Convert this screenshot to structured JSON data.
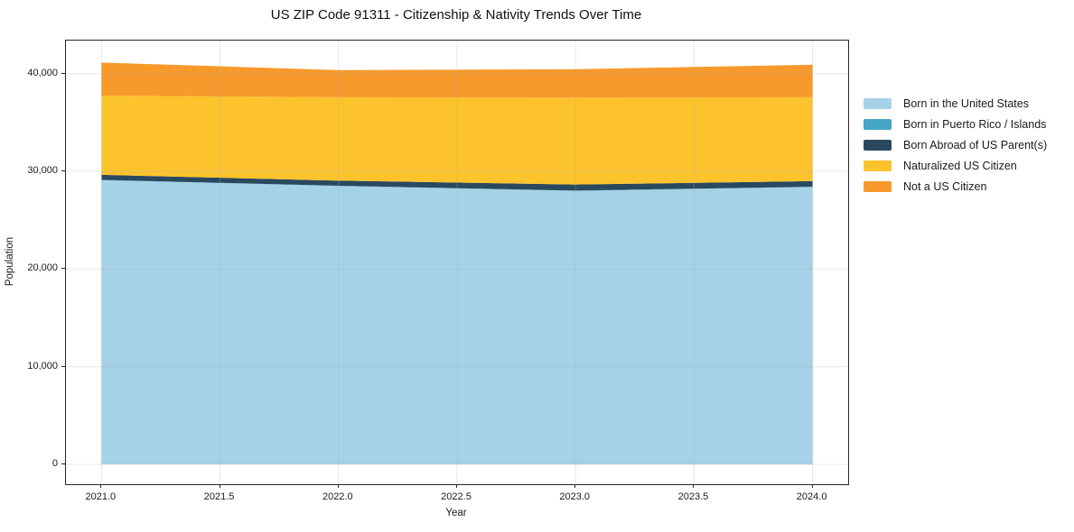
{
  "chart_data": {
    "type": "area",
    "stacked": true,
    "title": "US ZIP Code 91311 - Citizenship & Nativity Trends Over Time",
    "xlabel": "Year",
    "ylabel": "Population",
    "x": [
      2021,
      2022,
      2023,
      2024
    ],
    "series": [
      {
        "name": "Born in the United States",
        "color": "#a6d2e7",
        "values": [
          29100,
          28500,
          28000,
          28400
        ]
      },
      {
        "name": "Born in Puerto Rico / Islands",
        "color": "#45a6c3",
        "values": [
          30,
          30,
          30,
          30
        ]
      },
      {
        "name": "Born Abroad of US Parent(s)",
        "color": "#2a495e",
        "values": [
          520,
          520,
          620,
          570
        ]
      },
      {
        "name": "Naturalized US Citizen",
        "color": "#fcc32d",
        "values": [
          8100,
          8540,
          8890,
          8590
        ]
      },
      {
        "name": "Not a US Citizen",
        "color": "#f8992b",
        "values": [
          3390,
          2775,
          2915,
          3330
        ]
      }
    ],
    "totals": [
      41140,
      40365,
      40455,
      40920
    ],
    "xlim": [
      2020.85,
      2024.15
    ],
    "ylim": [
      -2030,
      43390
    ],
    "xticks": [
      {
        "value": 2021.0,
        "label": "2021.0"
      },
      {
        "value": 2021.5,
        "label": "2021.5"
      },
      {
        "value": 2022.0,
        "label": "2022.0"
      },
      {
        "value": 2022.5,
        "label": "2022.5"
      },
      {
        "value": 2023.0,
        "label": "2023.0"
      },
      {
        "value": 2023.5,
        "label": "2023.5"
      },
      {
        "value": 2024.0,
        "label": "2024.0"
      }
    ],
    "yticks": [
      {
        "value": 0,
        "label": "0"
      },
      {
        "value": 10000,
        "label": "10,000"
      },
      {
        "value": 20000,
        "label": "20,000"
      },
      {
        "value": 30000,
        "label": "30,000"
      },
      {
        "value": 40000,
        "label": "40,000"
      }
    ],
    "grid": true,
    "grid_color": "#b0b0b0",
    "grid_opacity": 0.3,
    "spine_color": "#262626",
    "legend_position": "right"
  }
}
